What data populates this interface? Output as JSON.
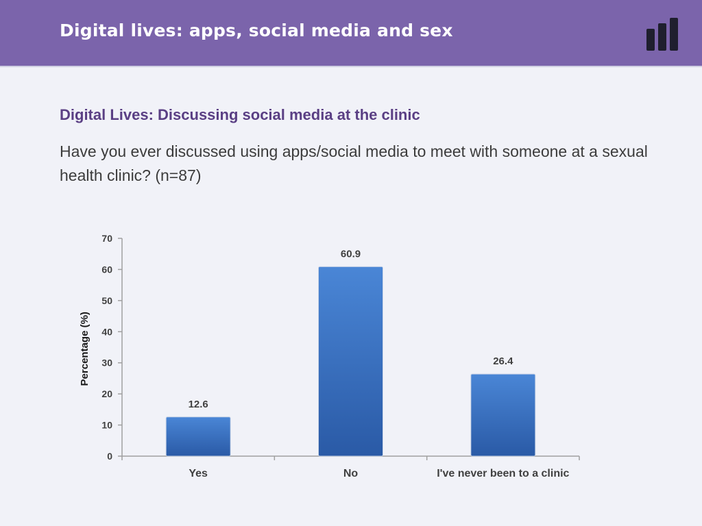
{
  "header": {
    "title": "Digital lives: apps, social media and sex",
    "logo_icon": "bar-chart-logo-icon"
  },
  "section": {
    "title": "Digital Lives: Discussing social media at the clinic",
    "question": "Have you ever discussed using apps/social media to meet with someone at a sexual health clinic? (n=87)"
  },
  "colors": {
    "header": "#7b64ab",
    "bar_top": "#4a86d6",
    "bar_bottom": "#2a5aa6",
    "title": "#5a3f84"
  },
  "chart_data": {
    "type": "bar",
    "categories": [
      "Yes",
      "No",
      "I've never been to a clinic"
    ],
    "values": [
      12.6,
      60.9,
      26.4
    ],
    "value_labels": [
      "12.6",
      "60.9",
      "26.4"
    ],
    "xlabel": "",
    "ylabel": "Percentage (%)",
    "ylim": [
      0,
      70
    ],
    "yticks": [
      0,
      10,
      20,
      30,
      40,
      50,
      60,
      70
    ],
    "grid": false,
    "legend": "none"
  }
}
